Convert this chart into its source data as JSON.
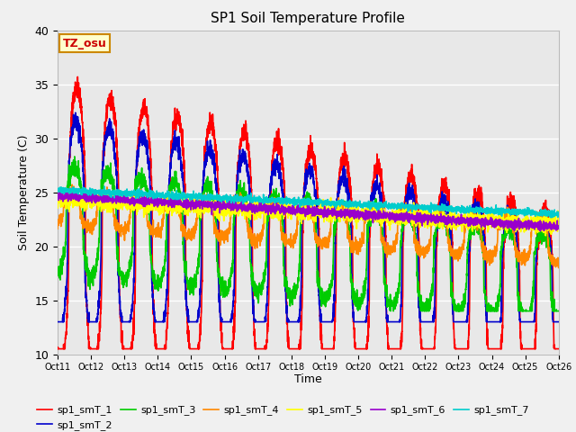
{
  "title": "SP1 Soil Temperature Profile",
  "xlabel": "Time",
  "ylabel": "Soil Temperature (C)",
  "ylim": [
    10,
    40
  ],
  "xlim": [
    0,
    360
  ],
  "annotation": "TZ_osu",
  "legend_labels": [
    "sp1_smT_1",
    "sp1_smT_2",
    "sp1_smT_3",
    "sp1_smT_4",
    "sp1_smT_5",
    "sp1_smT_6",
    "sp1_smT_7"
  ],
  "line_colors": [
    "#ff0000",
    "#0000cc",
    "#00cc00",
    "#ff8800",
    "#ffff00",
    "#9900cc",
    "#00cccc"
  ],
  "line_widths": [
    1.2,
    1.2,
    1.2,
    1.2,
    1.2,
    1.2,
    1.2
  ],
  "xtick_labels": [
    "Oct 11",
    "Oct 12",
    "Oct 13",
    "Oct 14",
    "Oct 15",
    "Oct 16",
    "Oct 17",
    "Oct 18",
    "Oct 19",
    "Oct 20",
    "Oct 21",
    "Oct 22",
    "Oct 23",
    "Oct 24",
    "Oct 25",
    "Oct 26"
  ],
  "xtick_positions": [
    0,
    24,
    48,
    72,
    96,
    120,
    144,
    168,
    192,
    216,
    240,
    264,
    288,
    312,
    336,
    360
  ],
  "ytick_positions": [
    10,
    15,
    20,
    25,
    30,
    35,
    40
  ],
  "plot_bg_color": "#e8e8e8",
  "fig_bg_color": "#f0f0f0"
}
